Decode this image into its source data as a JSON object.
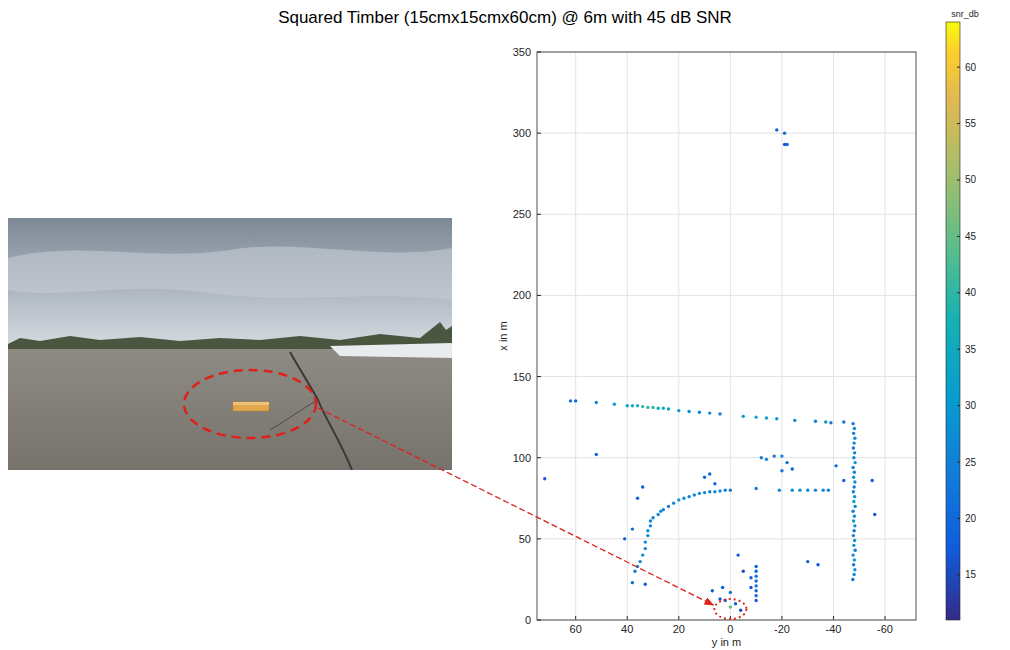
{
  "chart_data": {
    "type": "scatter",
    "title": "Squared Timber (15cmx15cmx60cm) @ 6m with 45 dB SNR",
    "x_label": "y in m",
    "y_label": "x in m",
    "xlim": [
      75,
      -72
    ],
    "xticks": [
      60,
      40,
      20,
      0,
      -20,
      -40,
      -60
    ],
    "ylim": [
      0,
      350
    ],
    "yticks": [
      0,
      50,
      100,
      150,
      200,
      250,
      300,
      350
    ],
    "grid": true,
    "colorbar": {
      "label": "snr_db",
      "range": [
        11,
        64
      ],
      "ticks": [
        15,
        20,
        25,
        30,
        35,
        40,
        45,
        50,
        55,
        60
      ]
    },
    "x": [
      -18,
      -21,
      -21,
      -22,
      62,
      60,
      52,
      45,
      40,
      38,
      36,
      34,
      32,
      30,
      28,
      26,
      24,
      20,
      16,
      12,
      8,
      4,
      -5,
      -10,
      -14,
      -18,
      -25,
      -33,
      -37,
      -39,
      -47.5,
      -48,
      -48.3,
      -47.8,
      -48.1,
      -47.6,
      -48.4,
      -47.9,
      -48.2,
      -47.7,
      -48,
      -48.3,
      -47.8,
      -48.1,
      -47.6,
      -48.4,
      -47.9,
      -48.2,
      -47.7,
      -48,
      -48.3,
      -47.8,
      -48.1,
      -47.6,
      -48.4,
      -47.9,
      -48.2,
      -47.7,
      -48,
      -48.3,
      -47.8,
      -48.1,
      -47.6,
      38,
      37,
      36,
      35,
      34,
      33,
      33,
      32,
      32,
      31,
      31,
      30,
      28,
      27,
      26,
      24,
      22,
      20,
      18,
      16,
      14,
      12,
      10,
      8,
      6,
      4,
      2,
      0,
      41,
      38,
      36,
      34,
      10,
      8,
      6,
      -12,
      -14,
      -17,
      -20,
      -22,
      -24,
      -20,
      -10,
      -19,
      -24,
      -27,
      -30,
      -33,
      -36,
      -38,
      -41,
      -44,
      -55,
      -56,
      -30,
      -34,
      52,
      -44,
      -10,
      -10,
      -10,
      -10,
      -10,
      -10,
      -10,
      -10,
      -8,
      -8,
      0,
      2,
      -2,
      4,
      -4,
      3,
      0,
      -3,
      7,
      -5,
      72,
      33
    ],
    "values": [
      302,
      300,
      293,
      293,
      135,
      135,
      134,
      133,
      132,
      132,
      132,
      131.5,
      131,
      131,
      130.5,
      130.5,
      130,
      129,
      128.5,
      128,
      127.5,
      127,
      125.5,
      125,
      124.5,
      124,
      123,
      122.5,
      122,
      121.5,
      25,
      28,
      31,
      34,
      37,
      40,
      43,
      46,
      49,
      52,
      55,
      58,
      61,
      64,
      67,
      70,
      73,
      76,
      79,
      82,
      85,
      88,
      91,
      94,
      97,
      100,
      103,
      106,
      109,
      112,
      115,
      118,
      121,
      23,
      30,
      33,
      36,
      40,
      44,
      48,
      52,
      55,
      58,
      61,
      63,
      65,
      67,
      68,
      70,
      72,
      74,
      75,
      76,
      77,
      78,
      78.5,
      79,
      79,
      79.5,
      80,
      80,
      50,
      56,
      75,
      82,
      88,
      90,
      84,
      100,
      99,
      101,
      101,
      97,
      93,
      92,
      81,
      80,
      80,
      80,
      80,
      80,
      80,
      80,
      95,
      86,
      86,
      65,
      36,
      34,
      102,
      122,
      12,
      15,
      18,
      21,
      24,
      27,
      30,
      33,
      26,
      20,
      8,
      12,
      10,
      13,
      6,
      20,
      17,
      40,
      18,
      30,
      87,
      22
    ],
    "snr": [
      18,
      20,
      17,
      19,
      22,
      20,
      25,
      30,
      33,
      35,
      38,
      40,
      41,
      40,
      37,
      36,
      33,
      30,
      28,
      26,
      25,
      22,
      30,
      34,
      32,
      30,
      27,
      25,
      28,
      24,
      22,
      26,
      28,
      24,
      30,
      27,
      23,
      29,
      31,
      25,
      22,
      27,
      30,
      28,
      24,
      26,
      32,
      29,
      25,
      23,
      28,
      30,
      26,
      24,
      29,
      27,
      25,
      22,
      26,
      28,
      24,
      27,
      23,
      20,
      24,
      26,
      27,
      28,
      25,
      26,
      27,
      29,
      24,
      26,
      25,
      27,
      28,
      26,
      25,
      27,
      29,
      28,
      26,
      27,
      28,
      26,
      27,
      28,
      26,
      25,
      24,
      18,
      20,
      19,
      17,
      20,
      18,
      19,
      24,
      26,
      22,
      25,
      20,
      18,
      22,
      24,
      27,
      26,
      28,
      27,
      26,
      27,
      25,
      20,
      18,
      17,
      16,
      18,
      17,
      19,
      22,
      18,
      20,
      19,
      22,
      21,
      24,
      20,
      19,
      18,
      17,
      45,
      20,
      18,
      17,
      16,
      19,
      22,
      17,
      18,
      16,
      17,
      18
    ]
  }
}
